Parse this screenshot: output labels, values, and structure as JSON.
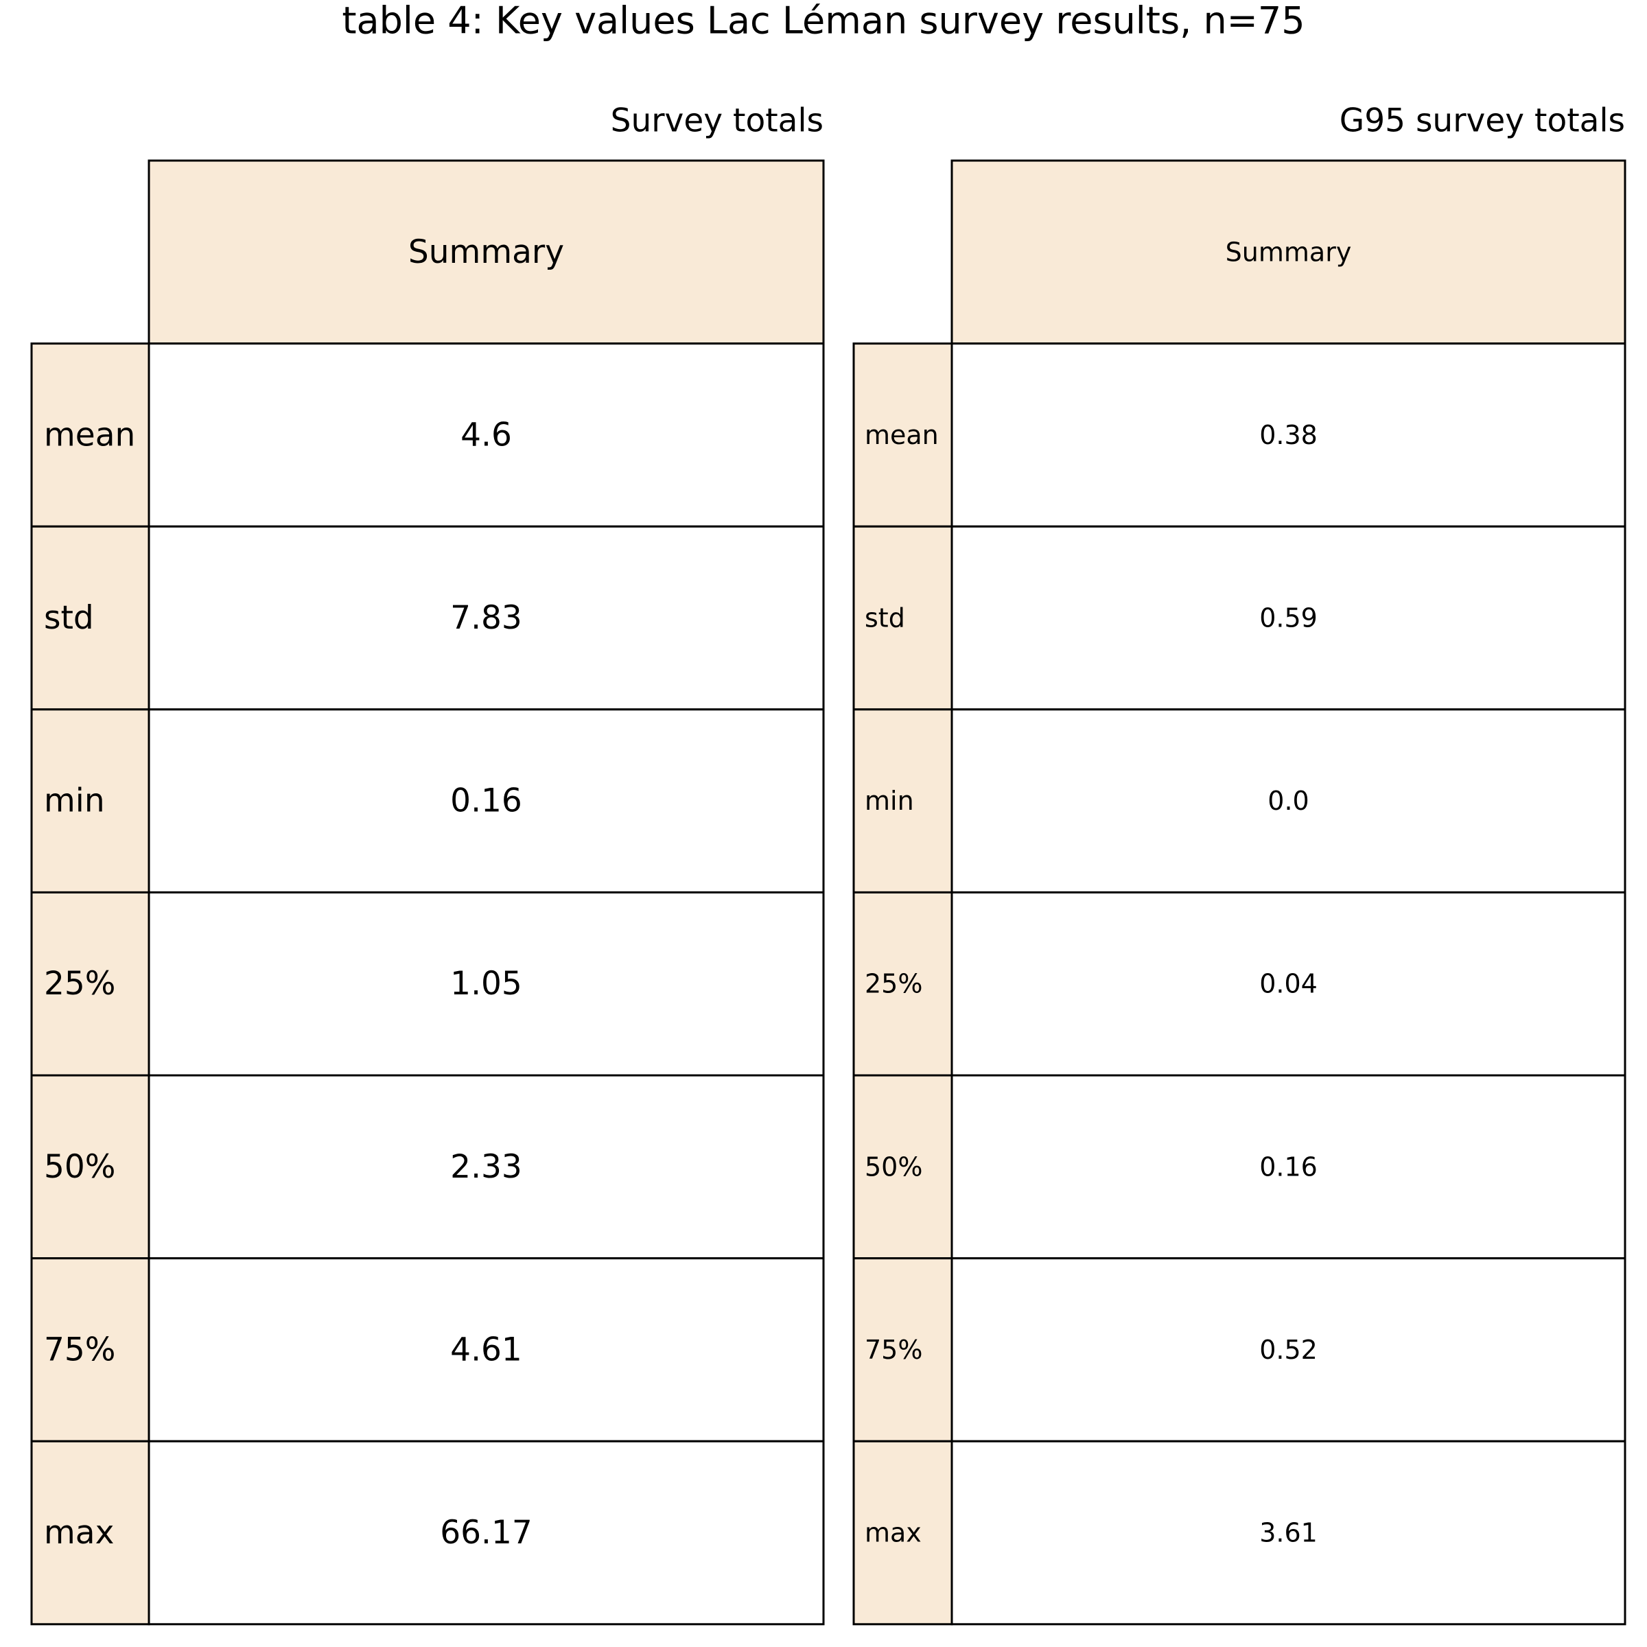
{
  "title": "table 4: Key values Lac Léman survey results, n=75",
  "colors": {
    "header_fill": "#F9EAD7",
    "cell_fill": "#FFFFFF",
    "border": "#000000",
    "text": "#000000"
  },
  "chart_data": [
    {
      "type": "table",
      "title": "Survey totals",
      "column_header": "Summary",
      "row_labels": [
        "mean",
        "std",
        "min",
        "25%",
        "50%",
        "75%",
        "max"
      ],
      "values": [
        "4.6",
        "7.83",
        "0.16",
        "1.05",
        "2.33",
        "4.61",
        "66.17"
      ]
    },
    {
      "type": "table",
      "title": "G95 survey totals",
      "column_header": "Summary",
      "row_labels": [
        "mean",
        "std",
        "min",
        "25%",
        "50%",
        "75%",
        "max"
      ],
      "values": [
        "0.38",
        "0.59",
        "0.0",
        "0.04",
        "0.16",
        "0.52",
        "3.61"
      ]
    }
  ]
}
